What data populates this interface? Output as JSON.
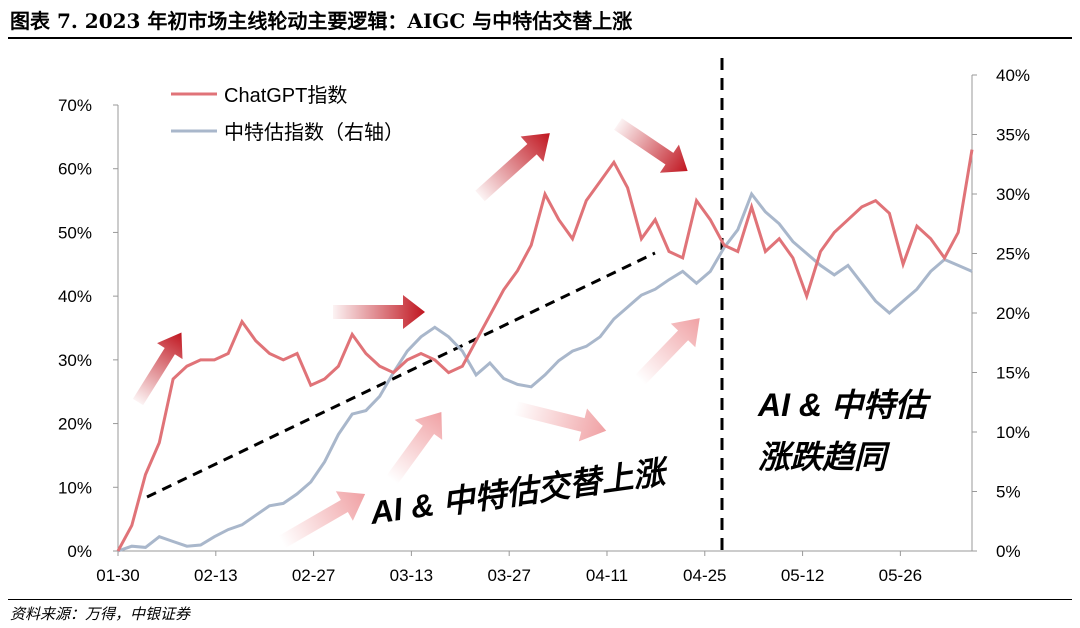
{
  "header": {
    "title": "图表 7. 2023 年初市场主线轮动主要逻辑：AIGC 与中特估交替上涨"
  },
  "footer": {
    "source": "资料来源：万得，中银证券"
  },
  "colors": {
    "chatgpt": "#e07378",
    "zte": "#a9b7cb",
    "arrow_dark": "#c0151f",
    "arrow_light": "#f0a1a4"
  },
  "chart_data": {
    "type": "line",
    "x_ticks": [
      "01-30",
      "02-13",
      "02-27",
      "03-13",
      "03-27",
      "04-11",
      "04-25",
      "05-12",
      "05-26"
    ],
    "y_left": {
      "min": 0,
      "max": 0.7,
      "ticks": [
        "0%",
        "10%",
        "20%",
        "30%",
        "40%",
        "50%",
        "60%",
        "70%"
      ]
    },
    "y_right": {
      "min": 0,
      "max": 0.4,
      "ticks": [
        "0%",
        "5%",
        "10%",
        "15%",
        "20%",
        "25%",
        "30%",
        "35%",
        "40%"
      ]
    },
    "grid": false,
    "legend_position": "top-left",
    "series": [
      {
        "name": "ChatGPT指数",
        "axis": "left",
        "color": "#e07378",
        "x": [
          0,
          2,
          4,
          6,
          8,
          10,
          12,
          14,
          16,
          18,
          20,
          22,
          24,
          26,
          28,
          30,
          32,
          34,
          36,
          38,
          40,
          42,
          44,
          46,
          48,
          50,
          52,
          54,
          56,
          58,
          60,
          62,
          64,
          66,
          68,
          70,
          72,
          74,
          76,
          78,
          80,
          82,
          84,
          86,
          88,
          90,
          92,
          94,
          96,
          98,
          100,
          102,
          104,
          106,
          108,
          110,
          112,
          114,
          116,
          118,
          120,
          122,
          124
        ],
        "values": [
          0,
          0.04,
          0.12,
          0.17,
          0.27,
          0.29,
          0.3,
          0.3,
          0.31,
          0.36,
          0.33,
          0.31,
          0.3,
          0.31,
          0.26,
          0.27,
          0.29,
          0.34,
          0.31,
          0.29,
          0.28,
          0.3,
          0.31,
          0.3,
          0.28,
          0.29,
          0.33,
          0.37,
          0.41,
          0.44,
          0.48,
          0.56,
          0.52,
          0.49,
          0.55,
          0.58,
          0.61,
          0.57,
          0.49,
          0.52,
          0.47,
          0.46,
          0.55,
          0.52,
          0.48,
          0.47,
          0.54,
          0.47,
          0.49,
          0.46,
          0.4,
          0.47,
          0.5,
          0.52,
          0.54,
          0.55,
          0.53,
          0.45,
          0.51,
          0.49,
          0.46,
          0.5,
          0.63
        ]
      },
      {
        "name": "中特估指数（右轴）",
        "axis": "right",
        "color": "#a9b7cb",
        "x": [
          0,
          2,
          4,
          6,
          8,
          10,
          12,
          14,
          16,
          18,
          20,
          22,
          24,
          26,
          28,
          30,
          32,
          34,
          36,
          38,
          40,
          42,
          44,
          46,
          48,
          50,
          52,
          54,
          56,
          58,
          60,
          62,
          64,
          66,
          68,
          70,
          72,
          74,
          76,
          78,
          80,
          82,
          84,
          86,
          88,
          90,
          92,
          94,
          96,
          98,
          100,
          102,
          104,
          106,
          108,
          110,
          112,
          114,
          116,
          118,
          120,
          122,
          124
        ],
        "values": [
          0,
          0.004,
          0.003,
          0.012,
          0.008,
          0.004,
          0.005,
          0.012,
          0.018,
          0.022,
          0.03,
          0.038,
          0.04,
          0.048,
          0.058,
          0.075,
          0.098,
          0.115,
          0.118,
          0.13,
          0.15,
          0.168,
          0.18,
          0.188,
          0.18,
          0.168,
          0.148,
          0.158,
          0.145,
          0.14,
          0.138,
          0.148,
          0.16,
          0.168,
          0.172,
          0.18,
          0.195,
          0.205,
          0.215,
          0.22,
          0.228,
          0.235,
          0.225,
          0.235,
          0.255,
          0.27,
          0.3,
          0.285,
          0.275,
          0.26,
          0.25,
          0.24,
          0.232,
          0.24,
          0.225,
          0.21,
          0.2,
          0.21,
          0.22,
          0.235,
          0.245,
          0.24,
          0.235
        ]
      }
    ],
    "annotations": [
      "AI & 中特估交替上涨",
      "AI & 中特估",
      "涨跌趋同"
    ]
  }
}
